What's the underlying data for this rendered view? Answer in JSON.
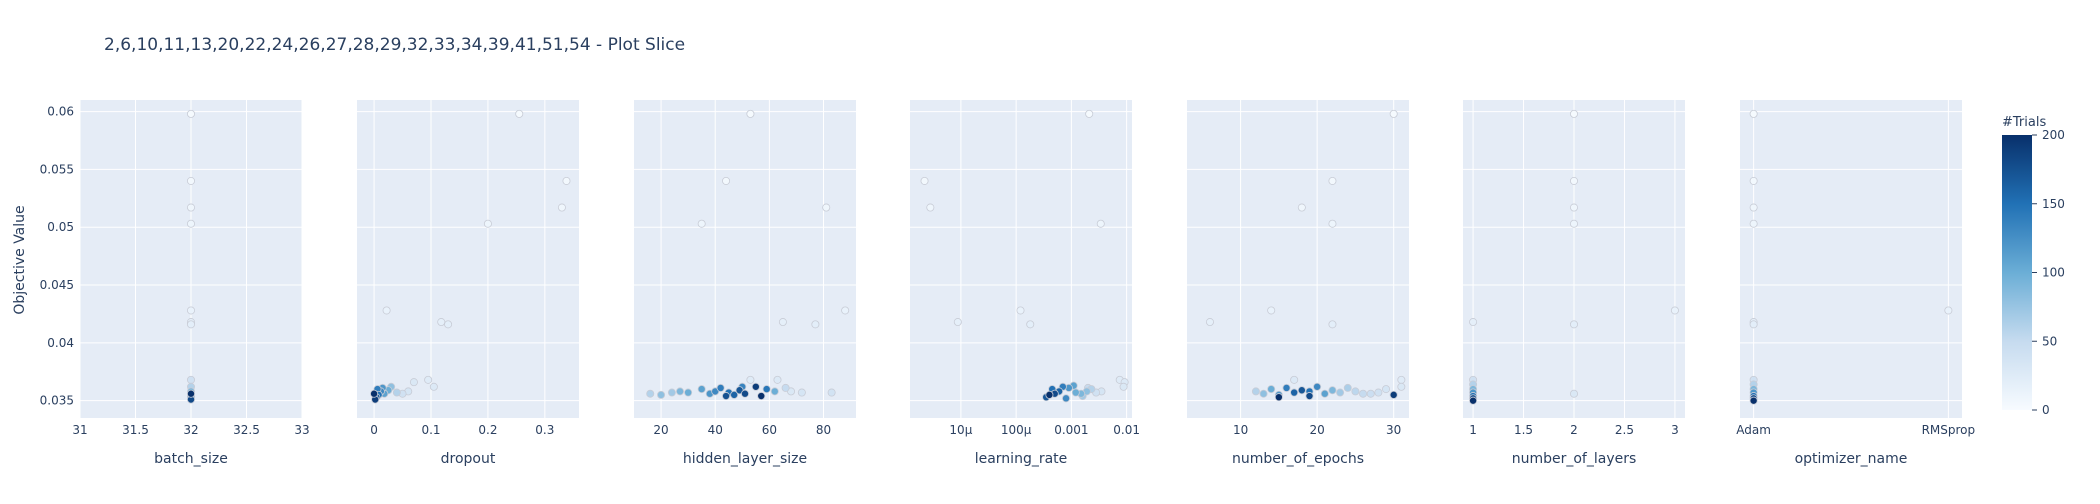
{
  "title": "2,6,10,11,13,20,22,24,26,27,28,29,32,33,34,39,41,51,54 - Plot Slice",
  "ylabel": "Objective Value",
  "colorbar": {
    "title": "#Trials",
    "ticks": [
      "0",
      "50",
      "100",
      "150",
      "200"
    ],
    "tick_values": [
      0,
      50,
      100,
      150,
      200
    ],
    "colors": [
      "#f7fbff",
      "#c6dbef",
      "#6baed6",
      "#2171b5",
      "#08306b"
    ]
  },
  "style": {
    "plot_bg": "#e5ecf6",
    "grid": "#ffffff",
    "marker_stroke": "#c8ccd6"
  },
  "chart_data": {
    "type": "scatter",
    "ylim": [
      0.0335,
      0.061
    ],
    "yticks": [
      0.035,
      0.04,
      0.045,
      0.05,
      0.055,
      0.06
    ],
    "ytick_labels": [
      "0.035",
      "0.04",
      "0.045",
      "0.05",
      "0.055",
      "0.06"
    ],
    "grid": true,
    "legend": "colorbar right",
    "panels": [
      {
        "xlabel": "batch_size",
        "scale": "linear",
        "xlim": [
          31,
          33
        ],
        "xticks": [
          31,
          31.5,
          32,
          32.5,
          33
        ],
        "xtick_labels": [
          "31",
          "31.5",
          "32",
          "32.5",
          "33"
        ],
        "points": [
          [
            32,
            0.0598,
            2
          ],
          [
            32,
            0.054,
            5
          ],
          [
            32,
            0.0517,
            8
          ],
          [
            32,
            0.0503,
            10
          ],
          [
            32,
            0.0428,
            14
          ],
          [
            32,
            0.0418,
            18
          ],
          [
            32,
            0.0416,
            20
          ],
          [
            32,
            0.0368,
            40
          ],
          [
            32,
            0.0362,
            60
          ],
          [
            32,
            0.0358,
            90
          ],
          [
            32,
            0.0355,
            120
          ],
          [
            32,
            0.0353,
            150
          ],
          [
            32,
            0.0351,
            180
          ],
          [
            32,
            0.0356,
            200
          ]
        ]
      },
      {
        "xlabel": "dropout",
        "scale": "linear",
        "xlim": [
          -0.03,
          0.36
        ],
        "xticks": [
          0,
          0.1,
          0.2,
          0.3
        ],
        "xtick_labels": [
          "0",
          "0.1",
          "0.2",
          "0.3"
        ],
        "points": [
          [
            0.255,
            0.0598,
            2
          ],
          [
            0.338,
            0.054,
            5
          ],
          [
            0.33,
            0.0517,
            8
          ],
          [
            0.2,
            0.0503,
            10
          ],
          [
            0.022,
            0.0428,
            14
          ],
          [
            0.118,
            0.0418,
            18
          ],
          [
            0.13,
            0.0416,
            20
          ],
          [
            0.095,
            0.0368,
            25
          ],
          [
            0.105,
            0.0362,
            28
          ],
          [
            0.07,
            0.0366,
            30
          ],
          [
            0.06,
            0.0358,
            35
          ],
          [
            0.05,
            0.0356,
            40
          ],
          [
            0.04,
            0.0357,
            60
          ],
          [
            0.03,
            0.0362,
            80
          ],
          [
            0.025,
            0.0359,
            100
          ],
          [
            0.018,
            0.0356,
            110
          ],
          [
            0.012,
            0.0358,
            130
          ],
          [
            0.008,
            0.0355,
            150
          ],
          [
            0.004,
            0.0353,
            170
          ],
          [
            0.002,
            0.0351,
            190
          ],
          [
            0.0,
            0.0356,
            200
          ],
          [
            0.006,
            0.036,
            140
          ],
          [
            0.015,
            0.0361,
            120
          ]
        ]
      },
      {
        "xlabel": "hidden_layer_size",
        "scale": "linear",
        "xlim": [
          10,
          92
        ],
        "xticks": [
          20,
          40,
          60,
          80
        ],
        "xtick_labels": [
          "20",
          "40",
          "60",
          "80"
        ],
        "points": [
          [
            53,
            0.0598,
            2
          ],
          [
            44,
            0.054,
            5
          ],
          [
            81,
            0.0517,
            8
          ],
          [
            35,
            0.0503,
            10
          ],
          [
            88,
            0.0428,
            14
          ],
          [
            65,
            0.0418,
            18
          ],
          [
            77,
            0.0416,
            20
          ],
          [
            53,
            0.0368,
            25
          ],
          [
            63,
            0.0368,
            28
          ],
          [
            68,
            0.0358,
            30
          ],
          [
            72,
            0.0357,
            35
          ],
          [
            83,
            0.0357,
            38
          ],
          [
            16,
            0.0356,
            60
          ],
          [
            20,
            0.0355,
            80
          ],
          [
            24,
            0.0357,
            70
          ],
          [
            27,
            0.0358,
            90
          ],
          [
            30,
            0.0357,
            100
          ],
          [
            35,
            0.036,
            110
          ],
          [
            38,
            0.0356,
            120
          ],
          [
            40,
            0.0358,
            130
          ],
          [
            42,
            0.0361,
            140
          ],
          [
            45,
            0.0357,
            150
          ],
          [
            47,
            0.0355,
            160
          ],
          [
            49,
            0.0359,
            170
          ],
          [
            51,
            0.0356,
            180
          ],
          [
            55,
            0.0362,
            190
          ],
          [
            57,
            0.0354,
            200
          ],
          [
            59,
            0.036,
            145
          ],
          [
            62,
            0.0358,
            100
          ],
          [
            66,
            0.0361,
            50
          ],
          [
            44,
            0.0354,
            175
          ],
          [
            50,
            0.0362,
            135
          ]
        ]
      },
      {
        "xlabel": "learning_rate",
        "scale": "log",
        "xlim": [
          1.2e-06,
          0.0125
        ],
        "xticks": [
          1e-05,
          0.0001,
          0.001,
          0.01
        ],
        "xtick_labels": [
          "10μ",
          "100μ",
          "0.001",
          "0.01"
        ],
        "points": [
          [
            0.0021,
            0.0598,
            2
          ],
          [
            2.2e-06,
            0.054,
            5
          ],
          [
            2.8e-06,
            0.0517,
            8
          ],
          [
            0.0034,
            0.0503,
            10
          ],
          [
            0.00012,
            0.0428,
            14
          ],
          [
            8.8e-06,
            0.0418,
            18
          ],
          [
            0.00018,
            0.0416,
            20
          ],
          [
            0.0075,
            0.0368,
            25
          ],
          [
            0.0092,
            0.0366,
            28
          ],
          [
            0.0088,
            0.0362,
            30
          ],
          [
            0.0035,
            0.0358,
            35
          ],
          [
            0.0028,
            0.0357,
            40
          ],
          [
            0.0023,
            0.036,
            60
          ],
          [
            0.0019,
            0.0358,
            80
          ],
          [
            0.0015,
            0.0356,
            90
          ],
          [
            0.0012,
            0.0357,
            100
          ],
          [
            0.0009,
            0.0361,
            120
          ],
          [
            0.0007,
            0.0362,
            140
          ],
          [
            0.0006,
            0.0358,
            160
          ],
          [
            0.0005,
            0.0356,
            180
          ],
          [
            0.0004,
            0.0355,
            200
          ],
          [
            0.00035,
            0.0353,
            170
          ],
          [
            0.00045,
            0.036,
            150
          ],
          [
            0.0008,
            0.0352,
            130
          ],
          [
            0.0011,
            0.0363,
            110
          ],
          [
            0.0016,
            0.0354,
            70
          ],
          [
            0.002,
            0.0361,
            50
          ]
        ]
      },
      {
        "xlabel": "number_of_epochs",
        "scale": "linear",
        "xlim": [
          3,
          32
        ],
        "xticks": [
          10,
          20,
          30
        ],
        "xtick_labels": [
          "10",
          "20",
          "30"
        ],
        "points": [
          [
            30,
            0.0598,
            2
          ],
          [
            22,
            0.054,
            5
          ],
          [
            18,
            0.0517,
            8
          ],
          [
            22,
            0.0503,
            10
          ],
          [
            14,
            0.0428,
            14
          ],
          [
            6,
            0.0418,
            18
          ],
          [
            22,
            0.0416,
            20
          ],
          [
            31,
            0.0368,
            25
          ],
          [
            17,
            0.0368,
            28
          ],
          [
            31,
            0.0362,
            30
          ],
          [
            29,
            0.036,
            35
          ],
          [
            28,
            0.0357,
            40
          ],
          [
            27,
            0.0356,
            45
          ],
          [
            12,
            0.0358,
            60
          ],
          [
            13,
            0.0356,
            80
          ],
          [
            14,
            0.036,
            100
          ],
          [
            15,
            0.0355,
            120
          ],
          [
            16,
            0.0361,
            140
          ],
          [
            17,
            0.0357,
            160
          ],
          [
            18,
            0.0359,
            170
          ],
          [
            19,
            0.0358,
            150
          ],
          [
            20,
            0.0362,
            130
          ],
          [
            21,
            0.0356,
            110
          ],
          [
            22,
            0.0359,
            90
          ],
          [
            23,
            0.0357,
            70
          ],
          [
            24,
            0.0361,
            65
          ],
          [
            25,
            0.0358,
            55
          ],
          [
            26,
            0.0356,
            50
          ],
          [
            30,
            0.0355,
            190
          ],
          [
            15,
            0.0353,
            200
          ],
          [
            19,
            0.0354,
            180
          ]
        ]
      },
      {
        "xlabel": "number_of_layers",
        "scale": "linear",
        "xlim": [
          0.9,
          3.1
        ],
        "xticks": [
          1,
          1.5,
          2,
          2.5,
          3
        ],
        "xtick_labels": [
          "1",
          "1.5",
          "2",
          "2.5",
          "3"
        ],
        "points": [
          [
            2,
            0.0598,
            2
          ],
          [
            2,
            0.054,
            5
          ],
          [
            2,
            0.0517,
            8
          ],
          [
            2,
            0.0503,
            10
          ],
          [
            3,
            0.0428,
            14
          ],
          [
            1,
            0.0418,
            18
          ],
          [
            2,
            0.0416,
            20
          ],
          [
            2,
            0.0356,
            30
          ],
          [
            1,
            0.0368,
            40
          ],
          [
            1,
            0.0364,
            60
          ],
          [
            1,
            0.036,
            90
          ],
          [
            1,
            0.0357,
            120
          ],
          [
            1,
            0.0354,
            150
          ],
          [
            1,
            0.0352,
            180
          ],
          [
            1,
            0.035,
            200
          ]
        ]
      },
      {
        "xlabel": "optimizer_name",
        "scale": "category",
        "xlim": [
          -0.07,
          1.07
        ],
        "xticks": [
          0,
          1
        ],
        "xtick_labels": [
          "Adam",
          "RMSprop"
        ],
        "points": [
          [
            0,
            0.0598,
            2
          ],
          [
            0,
            0.054,
            5
          ],
          [
            0,
            0.0517,
            8
          ],
          [
            0,
            0.0503,
            10
          ],
          [
            1,
            0.0428,
            14
          ],
          [
            0,
            0.0418,
            18
          ],
          [
            0,
            0.0416,
            20
          ],
          [
            0,
            0.0368,
            40
          ],
          [
            0,
            0.0364,
            60
          ],
          [
            0,
            0.036,
            90
          ],
          [
            0,
            0.0357,
            120
          ],
          [
            0,
            0.0354,
            150
          ],
          [
            0,
            0.0352,
            180
          ],
          [
            0,
            0.035,
            200
          ]
        ]
      }
    ]
  }
}
